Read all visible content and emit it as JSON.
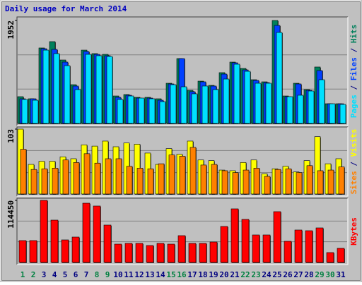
{
  "title": "Daily usage for March 2014",
  "legend_separator": "/",
  "categories": [
    "1",
    "2",
    "3",
    "4",
    "5",
    "6",
    "7",
    "8",
    "9",
    "10",
    "11",
    "12",
    "13",
    "14",
    "15",
    "16",
    "17",
    "18",
    "19",
    "20",
    "21",
    "22",
    "23",
    "24",
    "25",
    "26",
    "27",
    "28",
    "29",
    "30",
    "31"
  ],
  "category_colors": [
    "#008040",
    "#008040",
    "#000080",
    "#000080",
    "#000080",
    "#000080",
    "#000080",
    "#008040",
    "#008040",
    "#000080",
    "#000080",
    "#000080",
    "#000080",
    "#000080",
    "#008040",
    "#008040",
    "#000080",
    "#000080",
    "#000080",
    "#000080",
    "#000080",
    "#008040",
    "#008040",
    "#000080",
    "#000080",
    "#000080",
    "#000080",
    "#000080",
    "#008040",
    "#008040",
    "#000080"
  ],
  "chart_data": [
    {
      "type": "bar",
      "ylim": [
        0,
        1952
      ],
      "yticks": [
        1952
      ],
      "grid_values": [
        651,
        1301
      ],
      "series": [
        {
          "name": "Hits",
          "color": "#00805c",
          "values": [
            508,
            468,
            1431,
            1551,
            1203,
            735,
            1390,
            1324,
            1310,
            521,
            548,
            495,
            495,
            468,
            762,
            1230,
            628,
            802,
            722,
            963,
            1163,
            1043,
            829,
            789,
            1952,
            521,
            762,
            642,
            1070,
            374,
            374
          ]
        },
        {
          "name": "Files",
          "color": "#0040ff",
          "values": [
            468,
            468,
            1417,
            1404,
            1163,
            709,
            1364,
            1310,
            1284,
            495,
            535,
            481,
            481,
            441,
            749,
            1230,
            602,
            789,
            709,
            936,
            1150,
            1016,
            816,
            775,
            1858,
            508,
            749,
            628,
            1003,
            374,
            374
          ]
        },
        {
          "name": "Pages",
          "color": "#00e0ff",
          "values": [
            455,
            441,
            1390,
            1324,
            1096,
            642,
            1310,
            1284,
            1270,
            455,
            521,
            481,
            468,
            414,
            735,
            695,
            562,
            709,
            642,
            842,
            1123,
            989,
            762,
            762,
            1725,
            508,
            535,
            615,
            829,
            374,
            361
          ]
        }
      ]
    },
    {
      "type": "bar",
      "ylim": [
        0,
        103
      ],
      "yticks": [
        103
      ],
      "grid_values": [
        34,
        69
      ],
      "series": [
        {
          "name": "Visits",
          "color": "#ffff00",
          "values": [
            103,
            47,
            52,
            52,
            59,
            56,
            78,
            76,
            84,
            75,
            81,
            79,
            65,
            47,
            72,
            63,
            84,
            54,
            53,
            38,
            37,
            50,
            54,
            32,
            40,
            44,
            35,
            53,
            91,
            48,
            56
          ]
        },
        {
          "name": "Sites",
          "color": "#ff8000",
          "values": [
            71,
            39,
            40,
            41,
            54,
            50,
            64,
            49,
            56,
            56,
            44,
            41,
            40,
            48,
            62,
            60,
            74,
            46,
            47,
            37,
            34,
            38,
            41,
            28,
            39,
            40,
            34,
            45,
            37,
            38,
            43
          ]
        }
      ]
    },
    {
      "type": "bar",
      "ylim": [
        0,
        114450
      ],
      "yticks": [
        114450
      ],
      "grid_values": [
        38150,
        76300
      ],
      "series": [
        {
          "name": "KBytes",
          "color": "#ff0000",
          "values": [
            40319,
            40319,
            114450,
            78036,
            41619,
            46822,
            109250,
            104048,
            68932,
            33816,
            35116,
            35116,
            31214,
            35116,
            33816,
            49423,
            35116,
            35116,
            37717,
            66331,
            98846,
            79337,
            50723,
            50723,
            93643,
            39018,
            59828,
            58527,
            63729,
            18208,
            26012
          ]
        }
      ]
    }
  ]
}
